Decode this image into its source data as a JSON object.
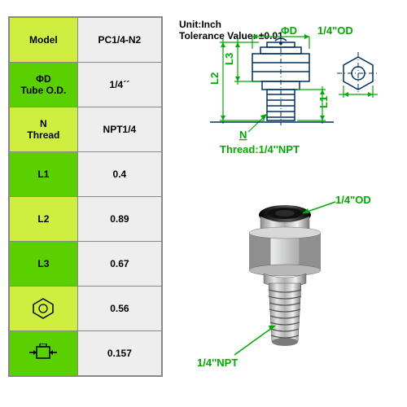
{
  "table": {
    "rows": [
      {
        "label": "Model",
        "value": "PC1/4-N2",
        "style": "light",
        "icon": null
      },
      {
        "label": "ΦD\nTube O.D.",
        "value": "1/4´´",
        "style": "dark",
        "icon": null
      },
      {
        "label": "N\nThread",
        "value": "NPT1/4",
        "style": "light",
        "icon": null
      },
      {
        "label": "L1",
        "value": "0.4",
        "style": "dark",
        "icon": null
      },
      {
        "label": "L2",
        "value": "0.89",
        "style": "light",
        "icon": null
      },
      {
        "label": "L3",
        "value": "0.67",
        "style": "dark",
        "icon": null
      },
      {
        "label": null,
        "value": "0.56",
        "style": "light",
        "icon": "hex_side"
      },
      {
        "label": null,
        "value": "0.157",
        "style": "dark",
        "icon": "collet"
      }
    ]
  },
  "header": {
    "unit": "Unit:Inch",
    "tolerance": "Tolerance Value:  ±0.01"
  },
  "drawing_labels": {
    "phiD": "ΦD",
    "od14": "1/4\"OD",
    "L3": "L3",
    "L2": "L2",
    "L1": "L1",
    "N": "N",
    "thread": "Thread:1/4''NPT"
  },
  "photo_labels": {
    "top": "1/4\"OD",
    "bottom": "1/4''NPT"
  },
  "colors": {
    "accent": "#00aa00",
    "draw": "#003060",
    "metal1": "#dcdcdc",
    "metal2": "#a0a0a0",
    "metal3": "#707070",
    "black": "#1a1a1a"
  }
}
